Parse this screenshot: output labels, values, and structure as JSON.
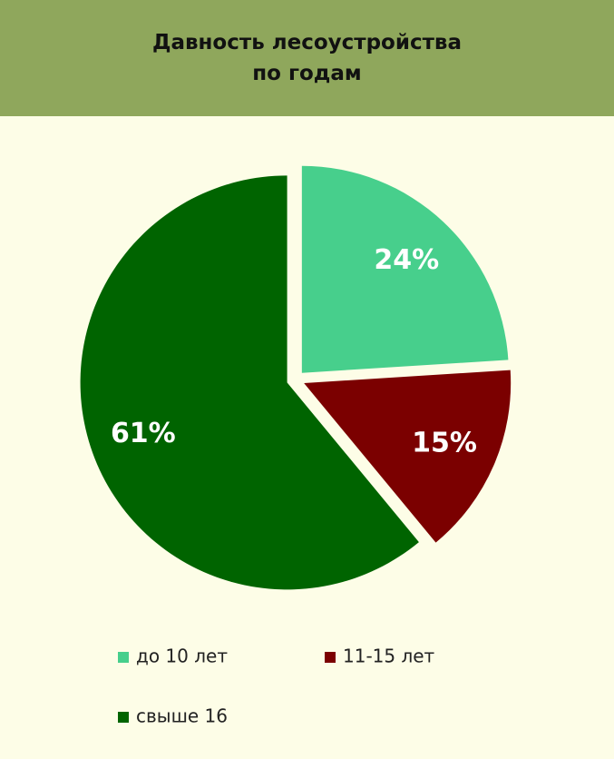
{
  "chart_data": {
    "type": "pie",
    "title": "Давность лесоустройства\nпо годам",
    "categories": [
      "до 10 лет",
      "11-15 лет",
      "свыше 16"
    ],
    "values": [
      24,
      15,
      61
    ],
    "value_labels": [
      "24%",
      "15%",
      "61%"
    ],
    "colors": [
      "#47cf8c",
      "#7b0000",
      "#006400"
    ],
    "legend": "bottom"
  }
}
